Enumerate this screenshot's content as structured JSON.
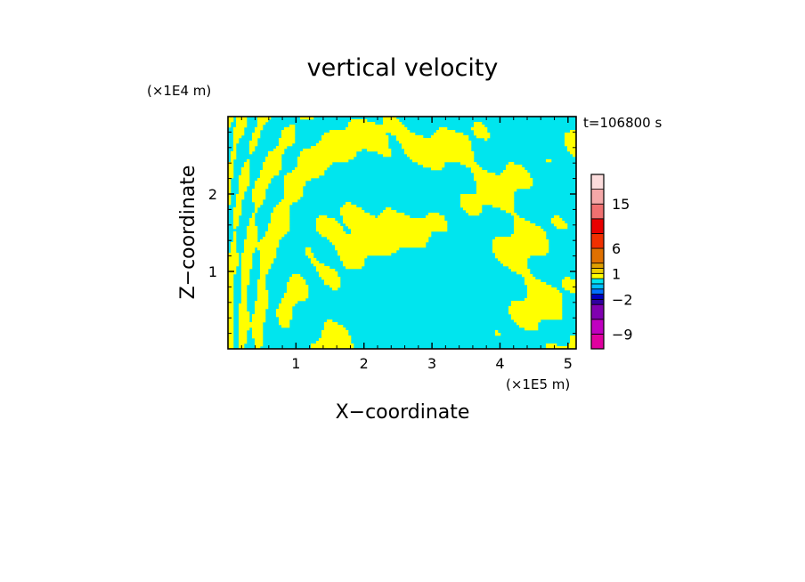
{
  "chart_data": {
    "type": "heatmap",
    "title": "vertical velocity",
    "xlabel": "X−coordinate",
    "ylabel": "Z−coordinate",
    "x_unit": "(×1E5 m)",
    "y_unit": "(×1E4 m)",
    "time_label": "t=106800 s",
    "xlim": [
      0,
      5.12
    ],
    "ylim": [
      0,
      3.0
    ],
    "x_ticks": [
      1,
      2,
      3,
      4,
      5
    ],
    "y_ticks": [
      1,
      2
    ],
    "x_tick_labels": [
      "1",
      "2",
      "3",
      "4",
      "5"
    ],
    "y_tick_labels": [
      "1",
      "2"
    ],
    "field_colors": {
      "negative": "#00e5ee",
      "positive": "#ffff00"
    },
    "colorbar": {
      "levels": [
        -12,
        -9,
        -6,
        -3,
        -2,
        -1,
        -0.5,
        0,
        0.5,
        1,
        2,
        3,
        6,
        9,
        12,
        15,
        18,
        24
      ],
      "colors": [
        "#e000a0",
        "#c000c0",
        "#8000b0",
        "#3000a0",
        "#0000c0",
        "#0070ff",
        "#00c0ff",
        "#00e5ee",
        "#ffff00",
        "#f0d000",
        "#e0a000",
        "#e07000",
        "#f03000",
        "#e80000",
        "#f07070",
        "#f4a8a8",
        "#fcdcdc"
      ],
      "labels": [
        {
          "value": 15,
          "text": "15"
        },
        {
          "value": 6,
          "text": "6"
        },
        {
          "value": 1,
          "text": "1"
        },
        {
          "value": -2,
          "text": "−2"
        },
        {
          "value": -9,
          "text": "−9"
        }
      ]
    }
  }
}
